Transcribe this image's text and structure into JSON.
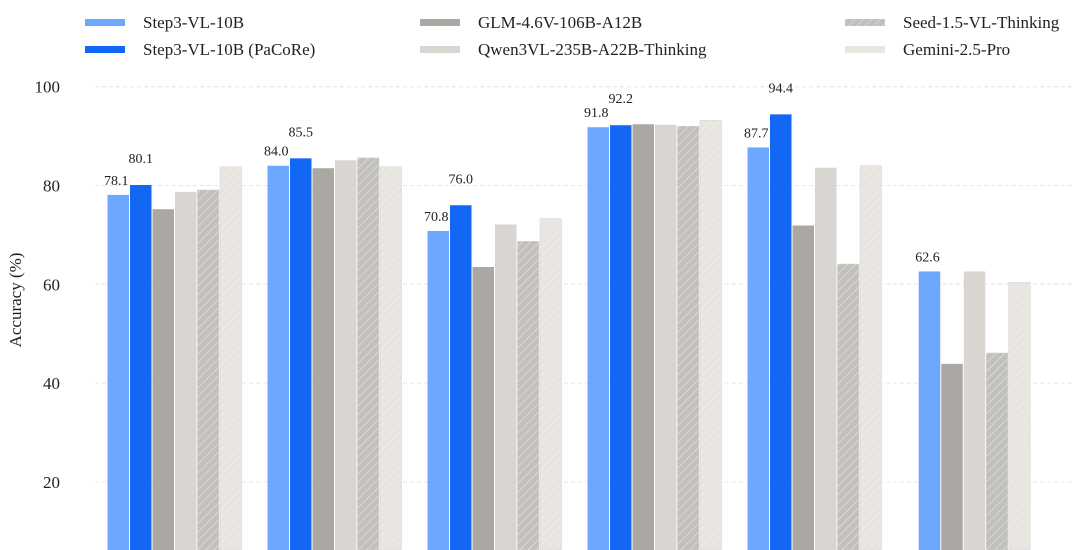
{
  "chart_data": {
    "type": "bar",
    "title": "",
    "xlabel": "",
    "ylabel": "Accuracy (%)",
    "ylim": [
      0,
      100
    ],
    "yticks": [
      20,
      40,
      60,
      80,
      100
    ],
    "grid": true,
    "legend_position": "top",
    "categories": [
      "",
      "",
      "",
      "",
      "",
      ""
    ],
    "series": [
      {
        "name": "Step3-VL-10B",
        "color": "#6ea8fe",
        "hatch": false,
        "values": [
          78.1,
          84.0,
          70.8,
          91.8,
          87.7,
          62.6
        ],
        "labeled": true
      },
      {
        "name": "Step3-VL-10B (PaCoRe)",
        "color": "#1268f5",
        "hatch": false,
        "values": [
          80.1,
          85.5,
          76.0,
          92.2,
          94.4,
          null
        ],
        "labeled": true
      },
      {
        "name": "GLM-4.6V-106B-A12B",
        "color": "#aba8a3",
        "hatch": false,
        "values": [
          75.2,
          83.5,
          63.5,
          92.4,
          71.9,
          43.9
        ],
        "labeled": false
      },
      {
        "name": "Qwen3VL-235B-A22B-Thinking",
        "color": "#d9d6d2",
        "hatch": false,
        "values": [
          78.7,
          85.1,
          72.1,
          92.3,
          83.6,
          62.6
        ],
        "labeled": false
      },
      {
        "name": "Seed-1.5-VL-Thinking",
        "color": "#c2c0bc",
        "hatch": true,
        "values": [
          79.1,
          85.6,
          68.7,
          92.0,
          64.1,
          46.1
        ],
        "labeled": false
      },
      {
        "name": "Gemini-2.5-Pro",
        "color": "#e8e5e1",
        "hatch": true,
        "values": [
          83.8,
          83.8,
          73.3,
          93.2,
          84.0,
          60.4
        ],
        "labeled": false
      }
    ]
  }
}
